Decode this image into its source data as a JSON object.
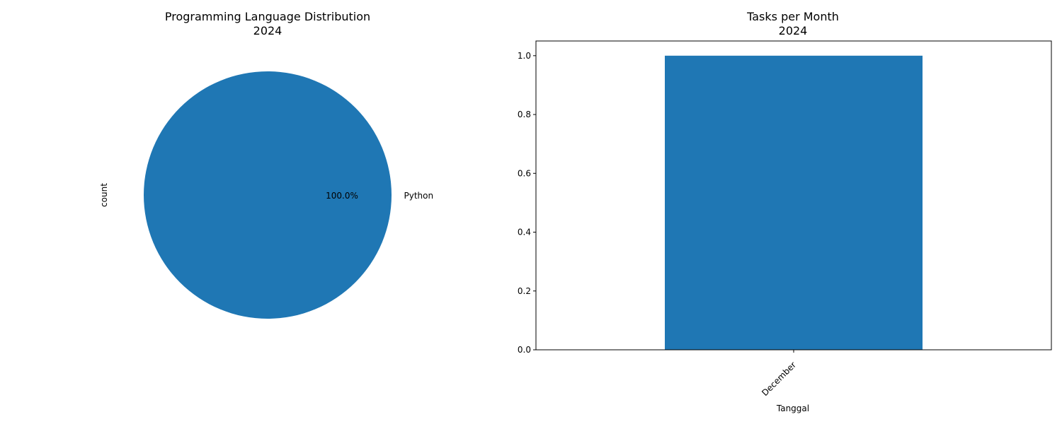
{
  "chart_data": [
    {
      "type": "pie",
      "title_line1": "Programming Language Distribution",
      "title_line2": "2024",
      "ylabel": "count",
      "labels": [
        "Python"
      ],
      "values": [
        1
      ],
      "percent_labels": [
        "100.0%"
      ],
      "colors": [
        "#1f77b4"
      ]
    },
    {
      "type": "bar",
      "title_line1": "Tasks per Month",
      "title_line2": "2024",
      "xlabel": "Tanggal",
      "ylabel": "",
      "categories": [
        "December"
      ],
      "values": [
        1
      ],
      "ylim": [
        0,
        1.05
      ],
      "yticks": [
        "0.0",
        "0.2",
        "0.4",
        "0.6",
        "0.8",
        "1.0"
      ],
      "ytick_values": [
        0,
        0.2,
        0.4,
        0.6,
        0.8,
        1.0
      ],
      "color": "#1f77b4",
      "xtick_rotation_deg": 45
    }
  ]
}
